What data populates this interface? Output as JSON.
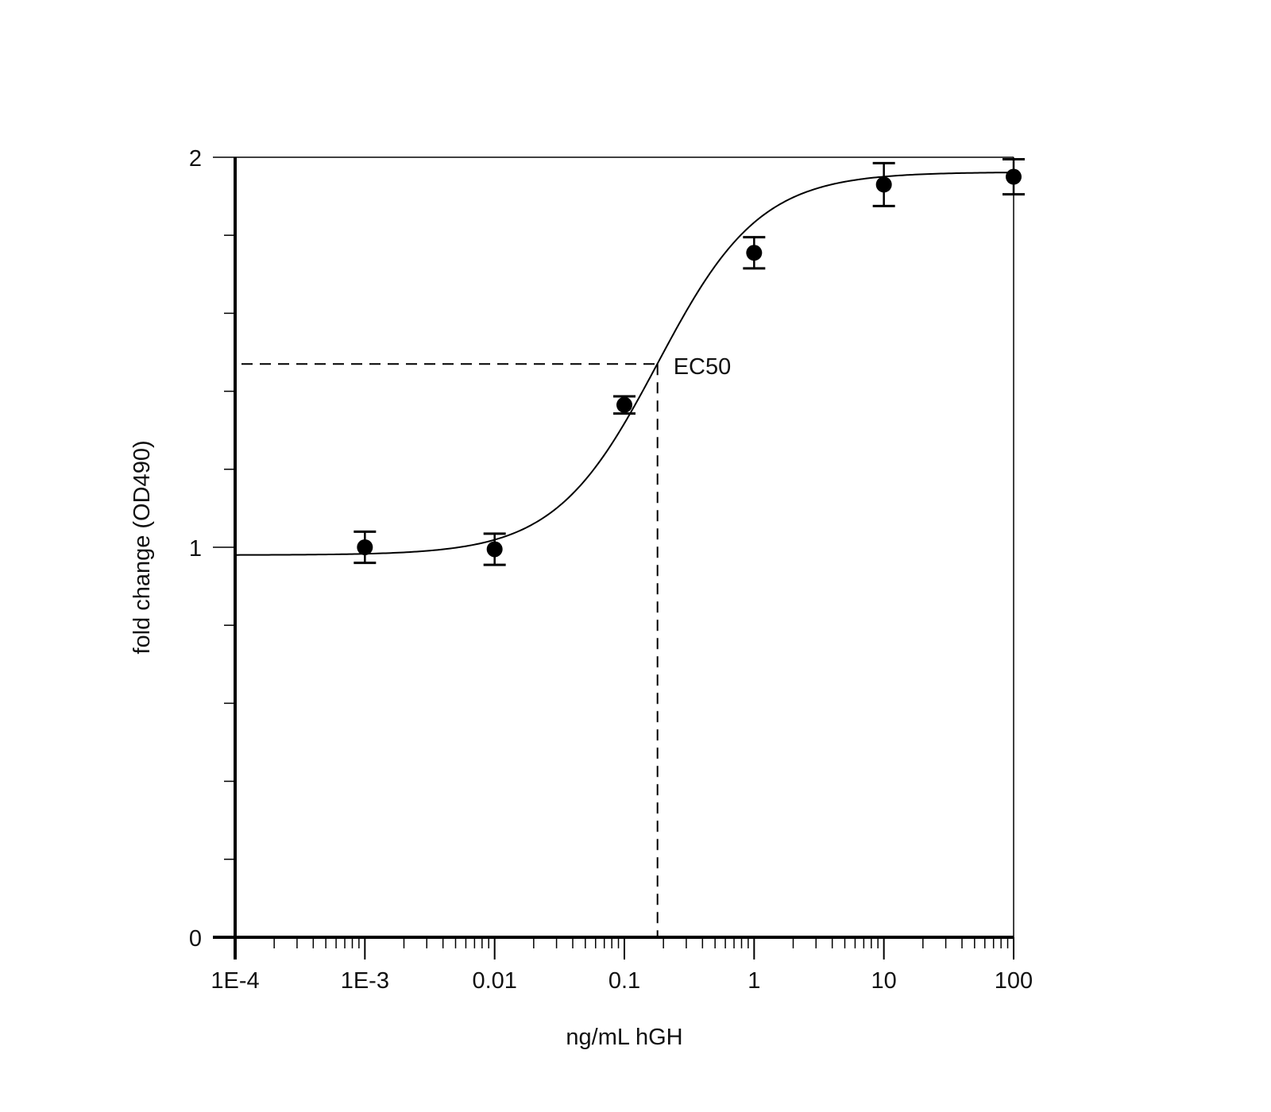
{
  "chart_data": {
    "type": "scatter",
    "xlabel": "ng/mL hGH",
    "ylabel": "fold change (OD490)",
    "x_scale": "log",
    "xlim": [
      0.0001,
      100
    ],
    "ylim": [
      0,
      2
    ],
    "x_ticks": [
      {
        "value": 0.0001,
        "label": "1E-4"
      },
      {
        "value": 0.001,
        "label": "1E-3"
      },
      {
        "value": 0.01,
        "label": "0.01"
      },
      {
        "value": 0.1,
        "label": "0.1"
      },
      {
        "value": 1,
        "label": "1"
      },
      {
        "value": 10,
        "label": "10"
      },
      {
        "value": 100,
        "label": "100"
      }
    ],
    "y_ticks": [
      {
        "value": 0,
        "label": "0"
      },
      {
        "value": 1,
        "label": "1"
      },
      {
        "value": 2,
        "label": "2"
      }
    ],
    "y_minor_step": 0.2,
    "grid": false,
    "series": [
      {
        "x": [
          0.001,
          0.01,
          0.1,
          1,
          10,
          100
        ],
        "y": [
          1.0,
          0.995,
          1.365,
          1.755,
          1.93,
          1.95
        ],
        "yerr": [
          0.04,
          0.04,
          0.022,
          0.04,
          0.055,
          0.045
        ]
      }
    ],
    "fit_curve": {
      "model": "4PL",
      "bottom": 0.98,
      "top": 1.962,
      "ec50": 0.18,
      "hill": 1.1
    },
    "annotations": [
      {
        "text": "EC50",
        "x": 0.18,
        "y": 1.47
      }
    ]
  }
}
